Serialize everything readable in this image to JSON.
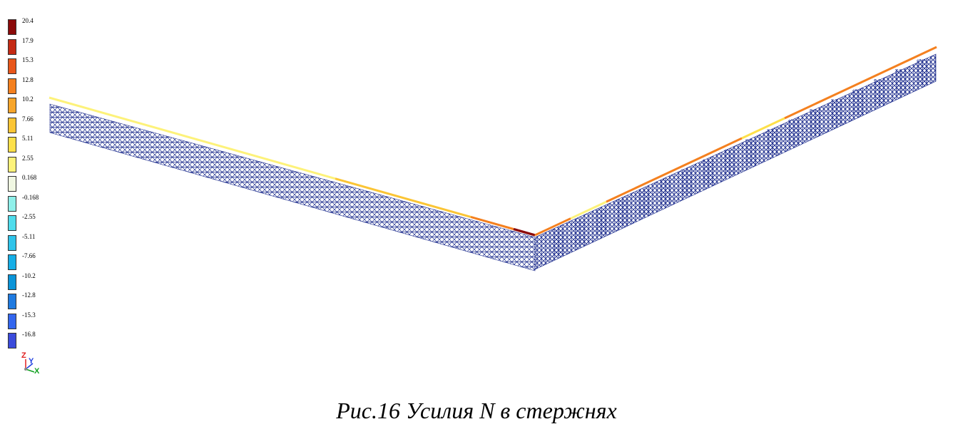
{
  "legend": {
    "items": [
      {
        "label": "20.4",
        "color": "#8b0a0a"
      },
      {
        "label": "17.9",
        "color": "#c42a14"
      },
      {
        "label": "15.3",
        "color": "#e8561a"
      },
      {
        "label": "12.8",
        "color": "#f4801f"
      },
      {
        "label": "10.2",
        "color": "#f7a52a"
      },
      {
        "label": "7.66",
        "color": "#fbc535"
      },
      {
        "label": "5.11",
        "color": "#fde04a"
      },
      {
        "label": "2.55",
        "color": "#fdf27a"
      },
      {
        "label": "0.168",
        "color": "#f0f7e2"
      },
      {
        "label": "-0.168",
        "color": "#8ff0ea"
      },
      {
        "label": "-2.55",
        "color": "#4fdcec"
      },
      {
        "label": "-5.11",
        "color": "#2fc4ea"
      },
      {
        "label": "-7.66",
        "color": "#16aee6"
      },
      {
        "label": "-10.2",
        "color": "#0a94d8"
      },
      {
        "label": "-12.8",
        "color": "#1f7ae0"
      },
      {
        "label": "-15.3",
        "color": "#3366ee"
      },
      {
        "label": "-16.8",
        "color": "#3b4bdb"
      }
    ]
  },
  "axes": {
    "z": "Z",
    "y": "Y",
    "x": "X"
  },
  "caption": "Рис.16 Усилия N в стержнях",
  "colors": {
    "truss_mesh": "#1a2a8c",
    "column_light": "#3fc6e8",
    "column_dark": "#2a55d8",
    "chord_yellow": "#fdf27a",
    "chord_orange": "#f4801f",
    "chord_red": "#8b0a0a"
  }
}
